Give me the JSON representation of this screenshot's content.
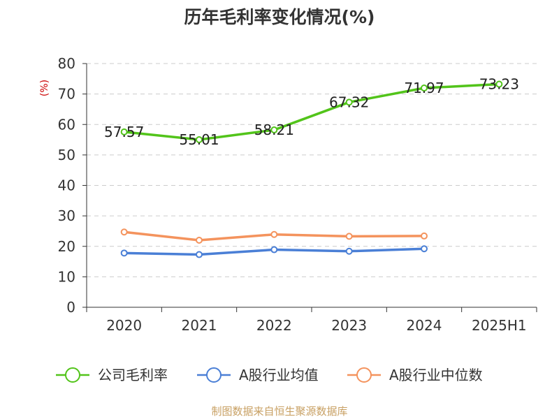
{
  "title": "历年毛利率变化情况(%)",
  "source": "制图数据来自恒生聚源数据库",
  "chart_data": {
    "type": "line",
    "title": "历年毛利率变化情况(%)",
    "ylabel": "(%)",
    "xlabel": "",
    "ylim": [
      0,
      80
    ],
    "yticks": [
      0,
      10,
      20,
      30,
      40,
      50,
      60,
      70,
      80
    ],
    "categories": [
      "2020",
      "2021",
      "2022",
      "2023",
      "2024",
      "2025H1"
    ],
    "grid": "horizontal dashed",
    "legend_position": "bottom",
    "series": [
      {
        "name": "公司毛利率",
        "color": "#52c41a",
        "values": [
          57.57,
          55.01,
          58.21,
          67.32,
          71.97,
          73.23
        ],
        "labels": [
          "57.57",
          "55.01",
          "58.21",
          "67.32",
          "71.97",
          "73.23"
        ]
      },
      {
        "name": "A股行业均值",
        "color": "#4a7fd6",
        "values": [
          17.8,
          17.3,
          18.9,
          18.4,
          19.2,
          null
        ]
      },
      {
        "name": "A股行业中位数",
        "color": "#f4935d",
        "values": [
          24.7,
          22.0,
          23.9,
          23.3,
          23.4,
          null
        ]
      }
    ]
  }
}
